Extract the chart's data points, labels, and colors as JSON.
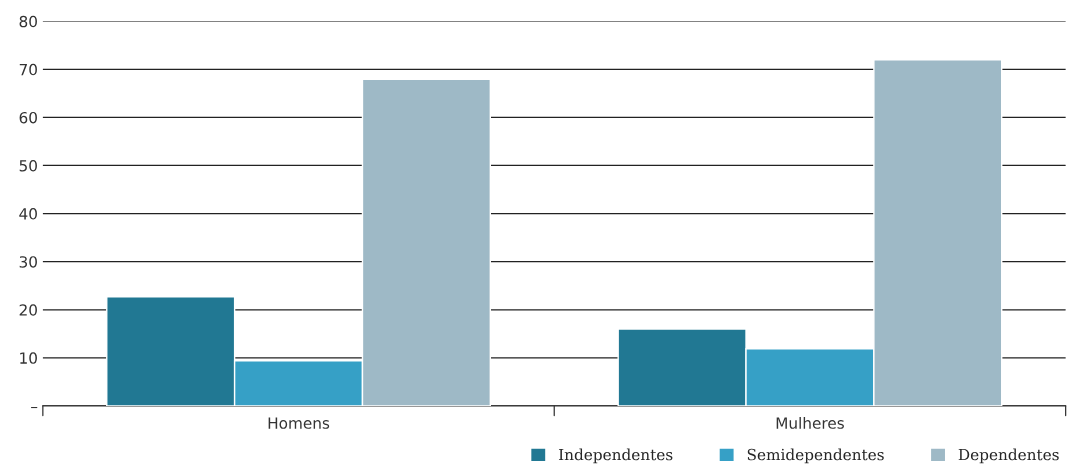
{
  "chart_data": {
    "type": "bar",
    "categories": [
      "Homens",
      "Mulheres"
    ],
    "series": [
      {
        "name": "Independentes",
        "color": "#217893",
        "values": [
          22.7,
          16.0
        ]
      },
      {
        "name": "Semidependentes",
        "color": "#36a0c6",
        "values": [
          9.4,
          11.9
        ]
      },
      {
        "name": "Dependentes",
        "color": "#9eb9c6",
        "values": [
          67.9,
          72.0
        ]
      }
    ],
    "ylim": [
      0,
      80
    ],
    "yticks": [
      {
        "value": 0,
        "label": "–"
      },
      10,
      20,
      30,
      40,
      50,
      60,
      70,
      80
    ],
    "grid": "y",
    "legend": "bottom right"
  }
}
